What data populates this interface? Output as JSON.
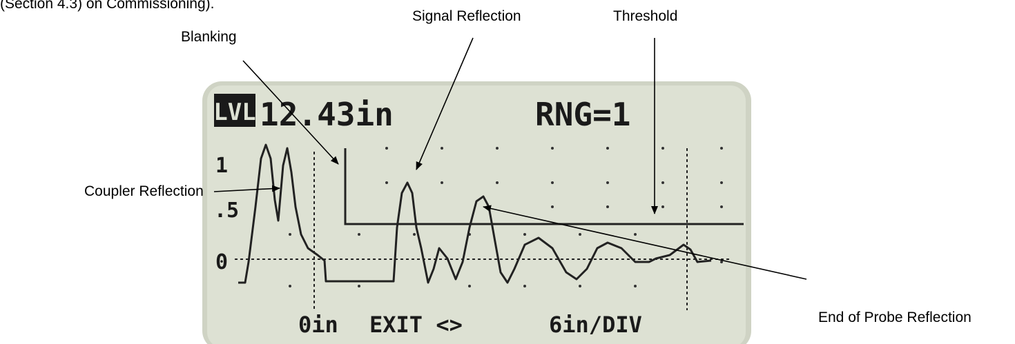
{
  "header_text": "(Section 4.3) on Commissioning).",
  "labels": {
    "blanking": "Blanking",
    "signal": "Signal Reflection",
    "threshold": "Threshold",
    "coupler": "Coupler Reflection",
    "end_of_probe": "End of Probe Reflection"
  },
  "screen": {
    "mode": "LVL",
    "reading": "12.43in",
    "range": "RNG=1",
    "axis_labels": [
      "1",
      ".5",
      "0"
    ],
    "footer": [
      "0in",
      "EXIT <>",
      "6in/DIV"
    ]
  }
}
